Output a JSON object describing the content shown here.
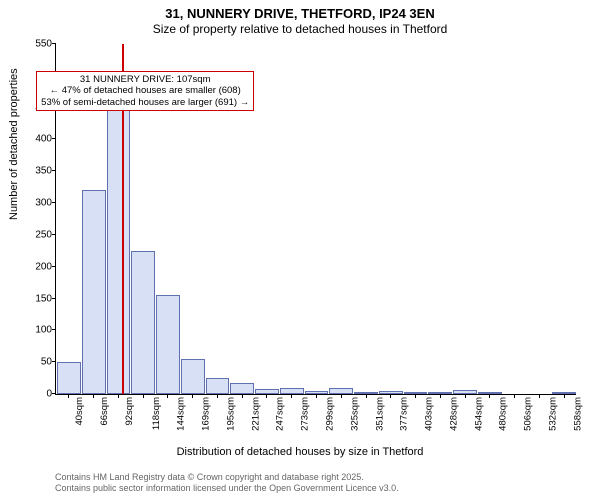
{
  "header": {
    "title": "31, NUNNERY DRIVE, THETFORD, IP24 3EN",
    "subtitle": "Size of property relative to detached houses in Thetford"
  },
  "chart": {
    "type": "histogram",
    "ylabel": "Number of detached properties",
    "xlabel": "Distribution of detached houses by size in Thetford",
    "ylim": [
      0,
      550
    ],
    "ytick_step": 50,
    "xtick_labels": [
      "40sqm",
      "66sqm",
      "92sqm",
      "118sqm",
      "144sqm",
      "169sqm",
      "195sqm",
      "221sqm",
      "247sqm",
      "273sqm",
      "299sqm",
      "325sqm",
      "351sqm",
      "377sqm",
      "403sqm",
      "428sqm",
      "454sqm",
      "480sqm",
      "506sqm",
      "532sqm",
      "558sqm"
    ],
    "bar_values": [
      50,
      320,
      455,
      225,
      155,
      55,
      25,
      18,
      8,
      10,
      4,
      10,
      3,
      5,
      2,
      2,
      6,
      1,
      0,
      0,
      2
    ],
    "bar_fill_color": "#d7e0f4",
    "bar_border_color": "#6070b0",
    "background_color": "#ffffff",
    "marker": {
      "color": "#cc0000",
      "value_index": 2.65,
      "annotation": [
        "31 NUNNERY DRIVE: 107sqm",
        "← 47% of detached houses are smaller (608)",
        "53% of semi-detached houses are larger (691) →"
      ],
      "annot_x_index": 3.6,
      "annot_y_value": 508
    },
    "label_fontsize": 11,
    "tick_fontsize": 10
  },
  "footer": {
    "line1": "Contains HM Land Registry data © Crown copyright and database right 2025.",
    "line2": "Contains public sector information licensed under the Open Government Licence v3.0."
  }
}
